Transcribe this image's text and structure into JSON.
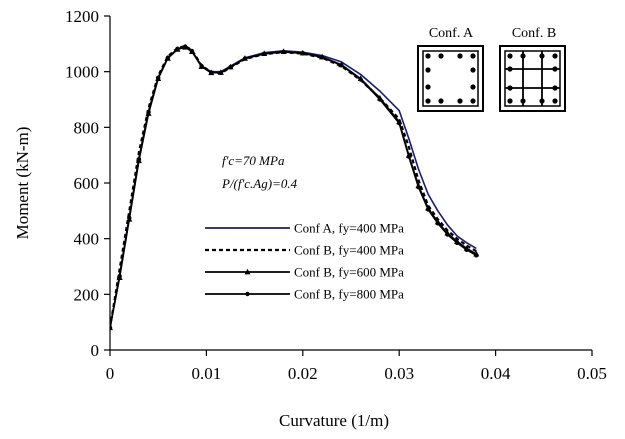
{
  "chart_data": {
    "type": "line",
    "xlabel": "Curvature (1/m)",
    "ylabel": "Moment (kN-m)",
    "xlim": [
      0,
      0.05
    ],
    "ylim": [
      0,
      1200
    ],
    "x_ticks": [
      0,
      0.01,
      0.02,
      0.03,
      0.04,
      0.05
    ],
    "x_tick_labels": [
      "0",
      "0.01",
      "0.02",
      "0.03",
      "0.04",
      "0.05"
    ],
    "y_ticks": [
      0,
      200,
      400,
      600,
      800,
      1000,
      1200
    ],
    "y_tick_labels": [
      "0",
      "200",
      "400",
      "600",
      "800",
      "1000",
      "1200"
    ],
    "grid": false,
    "legend_position": "bottom-center",
    "annotations": [
      {
        "text": "f'c=70 MPa"
      },
      {
        "text": "P/(f'c.Ag)=0.4"
      }
    ],
    "insets": [
      {
        "label": "Conf. A"
      },
      {
        "label": "Conf. B"
      }
    ],
    "series": [
      {
        "name": "Conf A, fy=400 MPa",
        "color": "#1a1a7a",
        "style": "solid",
        "marker": "none",
        "x": [
          0,
          0.001,
          0.002,
          0.003,
          0.004,
          0.005,
          0.006,
          0.007,
          0.0078,
          0.0085,
          0.0095,
          0.0105,
          0.0115,
          0.0125,
          0.014,
          0.016,
          0.018,
          0.02,
          0.022,
          0.024,
          0.026,
          0.028,
          0.03,
          0.031,
          0.032,
          0.033,
          0.034,
          0.035,
          0.036,
          0.037,
          0.038
        ],
        "y": [
          80,
          270,
          480,
          690,
          860,
          980,
          1050,
          1080,
          1090,
          1075,
          1020,
          1000,
          1000,
          1020,
          1050,
          1068,
          1075,
          1070,
          1058,
          1035,
          990,
          930,
          860,
          760,
          650,
          560,
          500,
          450,
          410,
          385,
          365
        ]
      },
      {
        "name": "Conf B, fy=400 MPa",
        "color": "#000000",
        "style": "dashed",
        "marker": "none",
        "x": [
          0,
          0.001,
          0.002,
          0.003,
          0.004,
          0.005,
          0.006,
          0.007,
          0.0078,
          0.0085,
          0.0095,
          0.0105,
          0.0115,
          0.0125,
          0.014,
          0.016,
          0.018,
          0.02,
          0.022,
          0.024,
          0.026,
          0.028,
          0.03,
          0.031,
          0.032,
          0.033,
          0.034,
          0.035,
          0.036,
          0.037,
          0.038
        ],
        "y": [
          80,
          290,
          500,
          710,
          870,
          985,
          1055,
          1085,
          1092,
          1078,
          1022,
          998,
          995,
          1015,
          1045,
          1063,
          1070,
          1065,
          1050,
          1020,
          970,
          905,
          830,
          730,
          610,
          520,
          470,
          430,
          400,
          375,
          355
        ]
      },
      {
        "name": "Conf B, fy=600 MPa",
        "color": "#000000",
        "style": "solid",
        "marker": "triangle",
        "x": [
          0,
          0.001,
          0.002,
          0.003,
          0.004,
          0.005,
          0.006,
          0.007,
          0.0078,
          0.0085,
          0.0095,
          0.0105,
          0.0115,
          0.0125,
          0.014,
          0.016,
          0.018,
          0.02,
          0.022,
          0.024,
          0.026,
          0.028,
          0.03,
          0.031,
          0.032,
          0.033,
          0.034,
          0.035,
          0.036,
          0.037,
          0.038
        ],
        "y": [
          80,
          260,
          470,
          680,
          850,
          975,
          1048,
          1080,
          1088,
          1072,
          1018,
          996,
          997,
          1017,
          1048,
          1065,
          1072,
          1067,
          1053,
          1025,
          975,
          905,
          820,
          700,
          590,
          510,
          460,
          420,
          390,
          365,
          345
        ]
      },
      {
        "name": "Conf B, fy=800 MPa",
        "color": "#000000",
        "style": "solid",
        "marker": "circle",
        "x": [
          0,
          0.001,
          0.002,
          0.003,
          0.004,
          0.005,
          0.006,
          0.007,
          0.0078,
          0.0085,
          0.0095,
          0.0105,
          0.0115,
          0.0125,
          0.014,
          0.016,
          0.018,
          0.02,
          0.022,
          0.024,
          0.026,
          0.028,
          0.03,
          0.031,
          0.032,
          0.033,
          0.034,
          0.035,
          0.036,
          0.037,
          0.038
        ],
        "y": [
          80,
          265,
          475,
          685,
          855,
          978,
          1050,
          1082,
          1090,
          1074,
          1020,
          997,
          996,
          1016,
          1047,
          1064,
          1071,
          1066,
          1052,
          1023,
          972,
          900,
          815,
          695,
          585,
          505,
          455,
          415,
          385,
          360,
          340
        ]
      }
    ]
  }
}
